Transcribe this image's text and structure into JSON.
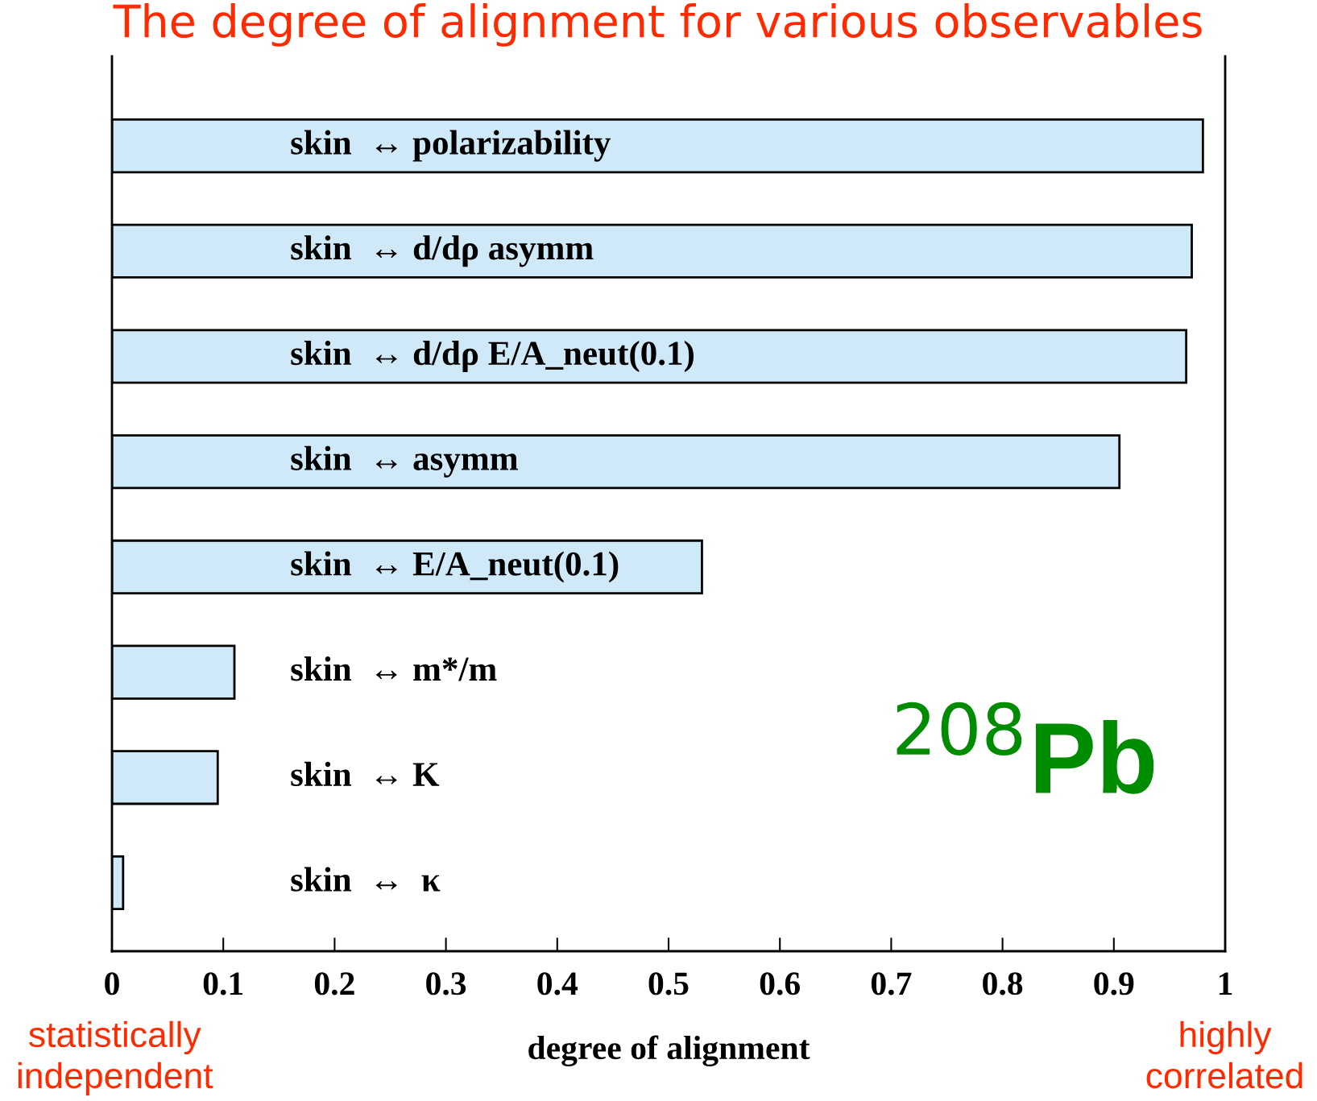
{
  "chart_data": {
    "type": "bar",
    "orientation": "horizontal",
    "title": "The degree of alignment for various observables",
    "xlabel": "degree of alignment",
    "categories": [
      "skin  ↔ polarizability",
      "skin  ↔ d/dρ asymm",
      "skin  ↔ d/dρ E/A_neut(0.1)",
      "skin  ↔ asymm",
      "skin  ↔ E/A_neut(0.1)",
      "skin  ↔ m*/m",
      "skin  ↔ K",
      "skin  ↔  κ"
    ],
    "values": [
      0.98,
      0.97,
      0.965,
      0.905,
      0.53,
      0.11,
      0.095,
      0.01
    ],
    "color": "#cfe9f9",
    "xlim": [
      0,
      1
    ],
    "xticks": [
      0,
      0.1,
      0.2,
      0.3,
      0.4,
      0.5,
      0.6,
      0.7,
      0.8,
      0.9,
      1
    ],
    "grid": false,
    "legend": false,
    "annotations": [
      "statistically\nindependent",
      "highly\ncorrelated",
      "$^{208}$Pb"
    ]
  }
}
